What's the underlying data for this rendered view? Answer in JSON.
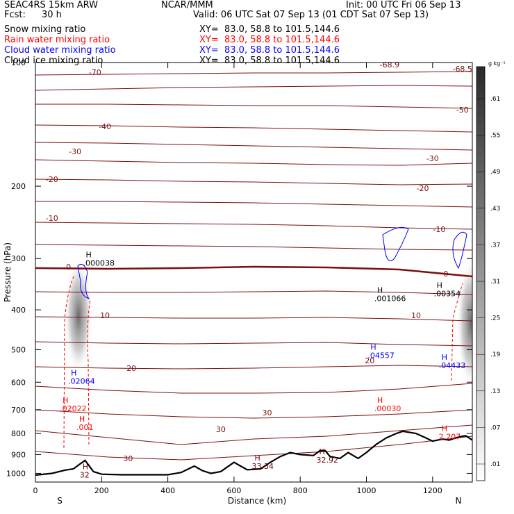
{
  "header": {
    "model": "SEAC4RS 15km ARW",
    "org": "NCAR/MMM",
    "init": "Init: 00 UTC Fri 06 Sep 13",
    "fcst_label": "Fcst:",
    "fcst_value": "30 h",
    "valid": "Valid: 06 UTC Sat 07 Sep 13 (01 CDT Sat 07 Sep 13)"
  },
  "fields": [
    {
      "name": "Snow mixing ratio",
      "xy": "XY=  83.0, 58.8 to 101.5,144.6",
      "color": "#000000"
    },
    {
      "name": "Rain water mixing ratio",
      "xy": "XY=  83.0, 58.8 to 101.5,144.6",
      "color": "#ff0000"
    },
    {
      "name": "Cloud water mixing ratio",
      "xy": "XY=  83.0, 58.8 to 101.5,144.6",
      "color": "#0000ff"
    },
    {
      "name": "Cloud ice mixing ratio",
      "xy": "XY=  83.0, 58.8 to 101.5,144.6",
      "color": "#000000"
    }
  ],
  "colorbar": {
    "unit": "g kg⁻¹",
    "labels": [
      ".01",
      ".07",
      ".13",
      ".19",
      ".25",
      ".31",
      ".37",
      ".43",
      ".49",
      ".55",
      ".61"
    ]
  },
  "chart_data": {
    "type": "contour-cross-section",
    "xlabel": "Distance (km)",
    "ylabel": "Pressure (hPa)",
    "xlim": [
      0,
      1320
    ],
    "ylim": [
      1050,
      100
    ],
    "y_scale": "log",
    "x_ticks": [
      0,
      200,
      400,
      600,
      800,
      1000,
      1200
    ],
    "y_ticks": [
      200,
      300,
      400,
      500,
      600,
      700,
      800,
      900,
      1000
    ],
    "y_ticks_overlapped": [
      100
    ],
    "x_end_labels": {
      "left": "S",
      "right": "N"
    },
    "terrain": [
      [
        0,
        1010
      ],
      [
        50,
        1000
      ],
      [
        90,
        982
      ],
      [
        115,
        975
      ],
      [
        130,
        955
      ],
      [
        150,
        930
      ],
      [
        165,
        965
      ],
      [
        175,
        990
      ],
      [
        200,
        1005
      ],
      [
        260,
        1008
      ],
      [
        400,
        1008
      ],
      [
        440,
        995
      ],
      [
        480,
        960
      ],
      [
        505,
        985
      ],
      [
        530,
        1000
      ],
      [
        560,
        990
      ],
      [
        600,
        940
      ],
      [
        620,
        960
      ],
      [
        640,
        980
      ],
      [
        680,
        975
      ],
      [
        710,
        940
      ],
      [
        740,
        910
      ],
      [
        770,
        890
      ],
      [
        800,
        900
      ],
      [
        840,
        905
      ],
      [
        860,
        880
      ],
      [
        875,
        880
      ],
      [
        890,
        910
      ],
      [
        920,
        920
      ],
      [
        945,
        890
      ],
      [
        960,
        905
      ],
      [
        975,
        920
      ],
      [
        1000,
        890
      ],
      [
        1030,
        850
      ],
      [
        1060,
        820
      ],
      [
        1090,
        800
      ],
      [
        1110,
        790
      ],
      [
        1150,
        800
      ],
      [
        1180,
        820
      ],
      [
        1200,
        835
      ],
      [
        1230,
        825
      ],
      [
        1250,
        830
      ],
      [
        1280,
        815
      ],
      [
        1300,
        810
      ],
      [
        1320,
        830
      ]
    ],
    "temperature_contours": [
      {
        "level": -70,
        "label": "-70",
        "label_x": 180
      },
      {
        "level": -68.9,
        "label": "-68.9",
        "label_x": 1070
      },
      {
        "level": -68.5,
        "label": "-68.5",
        "label_x": 1290
      },
      {
        "level": -50,
        "label": "-50",
        "label_x": 1290
      },
      {
        "level": -40,
        "label": "-40",
        "label_x": 210
      },
      {
        "level": -30,
        "label": "-30",
        "label_x": 120
      },
      {
        "level": -30,
        "label": "-30",
        "label_x": 1200
      },
      {
        "level": -20,
        "label": "-20",
        "label_x": 50
      },
      {
        "level": -20,
        "label": "-20",
        "label_x": 1170
      },
      {
        "level": -10,
        "label": "-10",
        "label_x": 50
      },
      {
        "level": -10,
        "label": "-10",
        "label_x": 1220
      },
      {
        "level": 0,
        "label": "0",
        "label_x": 100
      },
      {
        "level": 0,
        "label": "0",
        "label_x": 1240
      },
      {
        "level": 10,
        "label": "10",
        "label_x": 210
      },
      {
        "level": 10,
        "label": "10",
        "label_x": 1150
      },
      {
        "level": 20,
        "label": "20",
        "label_x": 290
      },
      {
        "level": 20,
        "label": "20",
        "label_x": 1010
      },
      {
        "level": 30,
        "label": "30",
        "label_x": 280
      },
      {
        "level": 30,
        "label": "30",
        "label_x": 560
      },
      {
        "level": 30,
        "label": "30",
        "label_x": 700
      }
    ],
    "maxima": [
      {
        "text": ".000038",
        "x": 190,
        "p": 310,
        "color": "#000000"
      },
      {
        "text": ".001066",
        "x": 1070,
        "p": 378,
        "color": "#000000"
      },
      {
        "text": ".00354",
        "x": 1250,
        "p": 368,
        "color": "#000000"
      },
      {
        "text": ".04557",
        "x": 1050,
        "p": 520,
        "color": "#0000ff"
      },
      {
        "text": ".04433",
        "x": 1265,
        "p": 550,
        "color": "#0000ff"
      },
      {
        "text": ".02064",
        "x": 145,
        "p": 600,
        "color": "#0000ff"
      },
      {
        "text": ".02022",
        "x": 120,
        "p": 700,
        "color": "#ff0000"
      },
      {
        "text": ".00030",
        "x": 1070,
        "p": 700,
        "color": "#ff0000"
      },
      {
        "text": ".001",
        "x": 170,
        "p": 778,
        "color": "#ff0000"
      },
      {
        "text": "2.207",
        "x": 1265,
        "p": 820,
        "color": "#ff0000"
      },
      {
        "text": "33.34",
        "x": 700,
        "p": 968,
        "color": "#6b0000"
      },
      {
        "text": "32.92",
        "x": 895,
        "p": 935,
        "color": "#6b0000"
      },
      {
        "text": "32",
        "x": 180,
        "p": 1015,
        "color": "#6b0000"
      }
    ],
    "shaded_regions": [
      {
        "field": "snow/ice",
        "x_center": 130,
        "p_top": 300,
        "p_bottom": 570,
        "peak": 0.43
      },
      {
        "field": "snow/ice",
        "x_center": 1315,
        "p_top": 300,
        "p_bottom": 620,
        "peak": 0.49
      }
    ]
  }
}
